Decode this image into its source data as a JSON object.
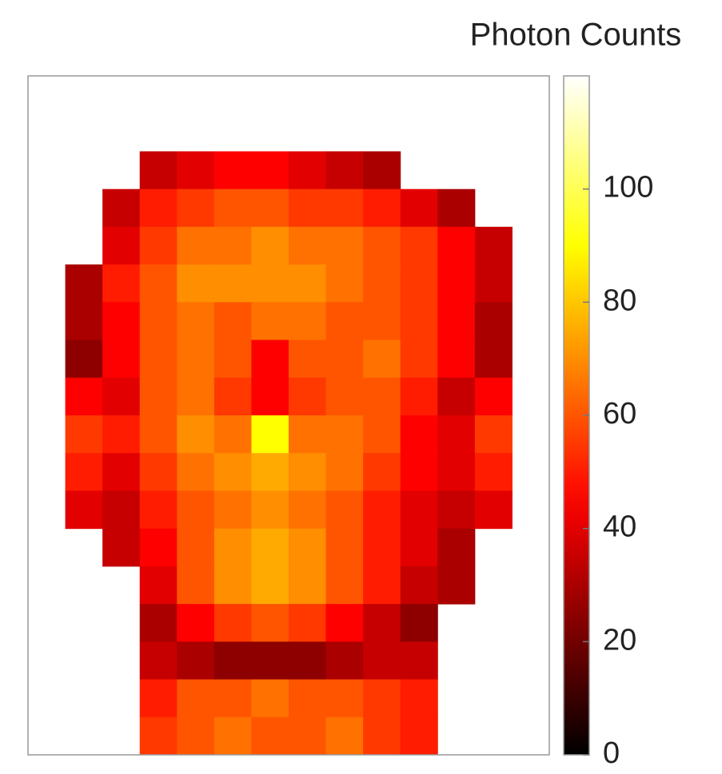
{
  "chart_data": {
    "type": "heatmap",
    "colorbar_title": "Photon Counts",
    "colormap": "hot",
    "clim": [
      0,
      120
    ],
    "cticks": [
      0,
      20,
      40,
      60,
      80,
      100
    ],
    "values": [
      [
        null,
        null,
        null,
        null,
        null,
        null,
        null,
        null,
        null,
        null,
        null,
        null,
        null,
        null
      ],
      [
        null,
        null,
        null,
        null,
        null,
        null,
        null,
        null,
        null,
        null,
        null,
        null,
        null,
        null
      ],
      [
        null,
        null,
        null,
        35,
        40,
        45,
        45,
        40,
        35,
        30,
        null,
        null,
        null,
        null
      ],
      [
        null,
        null,
        35,
        50,
        55,
        60,
        60,
        55,
        55,
        50,
        40,
        30,
        null,
        null
      ],
      [
        null,
        null,
        40,
        55,
        65,
        65,
        70,
        65,
        65,
        60,
        55,
        45,
        35,
        null
      ],
      [
        null,
        30,
        50,
        60,
        70,
        70,
        70,
        70,
        65,
        60,
        55,
        45,
        35,
        null
      ],
      [
        null,
        30,
        45,
        60,
        65,
        60,
        65,
        65,
        60,
        60,
        55,
        45,
        30,
        null
      ],
      [
        null,
        25,
        45,
        60,
        65,
        60,
        45,
        60,
        60,
        65,
        55,
        45,
        30,
        null
      ],
      [
        null,
        45,
        40,
        60,
        65,
        55,
        45,
        55,
        60,
        60,
        50,
        35,
        45,
        null
      ],
      [
        null,
        55,
        50,
        60,
        70,
        65,
        90,
        65,
        65,
        60,
        45,
        40,
        55,
        null
      ],
      [
        null,
        50,
        40,
        55,
        65,
        70,
        75,
        70,
        65,
        55,
        45,
        40,
        50,
        null
      ],
      [
        null,
        40,
        35,
        50,
        60,
        65,
        70,
        65,
        60,
        50,
        40,
        35,
        40,
        null
      ],
      [
        null,
        null,
        35,
        45,
        60,
        70,
        75,
        70,
        60,
        50,
        40,
        30,
        null,
        null
      ],
      [
        null,
        null,
        null,
        40,
        60,
        70,
        75,
        70,
        60,
        50,
        35,
        30,
        null,
        null
      ],
      [
        null,
        null,
        null,
        30,
        45,
        55,
        60,
        55,
        45,
        35,
        25,
        null,
        null,
        null
      ],
      [
        null,
        null,
        null,
        35,
        30,
        25,
        25,
        25,
        30,
        35,
        35,
        null,
        null,
        null
      ],
      [
        null,
        null,
        null,
        50,
        60,
        60,
        65,
        60,
        60,
        55,
        50,
        null,
        null,
        null
      ],
      [
        null,
        null,
        null,
        55,
        60,
        65,
        60,
        60,
        65,
        55,
        50,
        null,
        null,
        null
      ]
    ]
  }
}
